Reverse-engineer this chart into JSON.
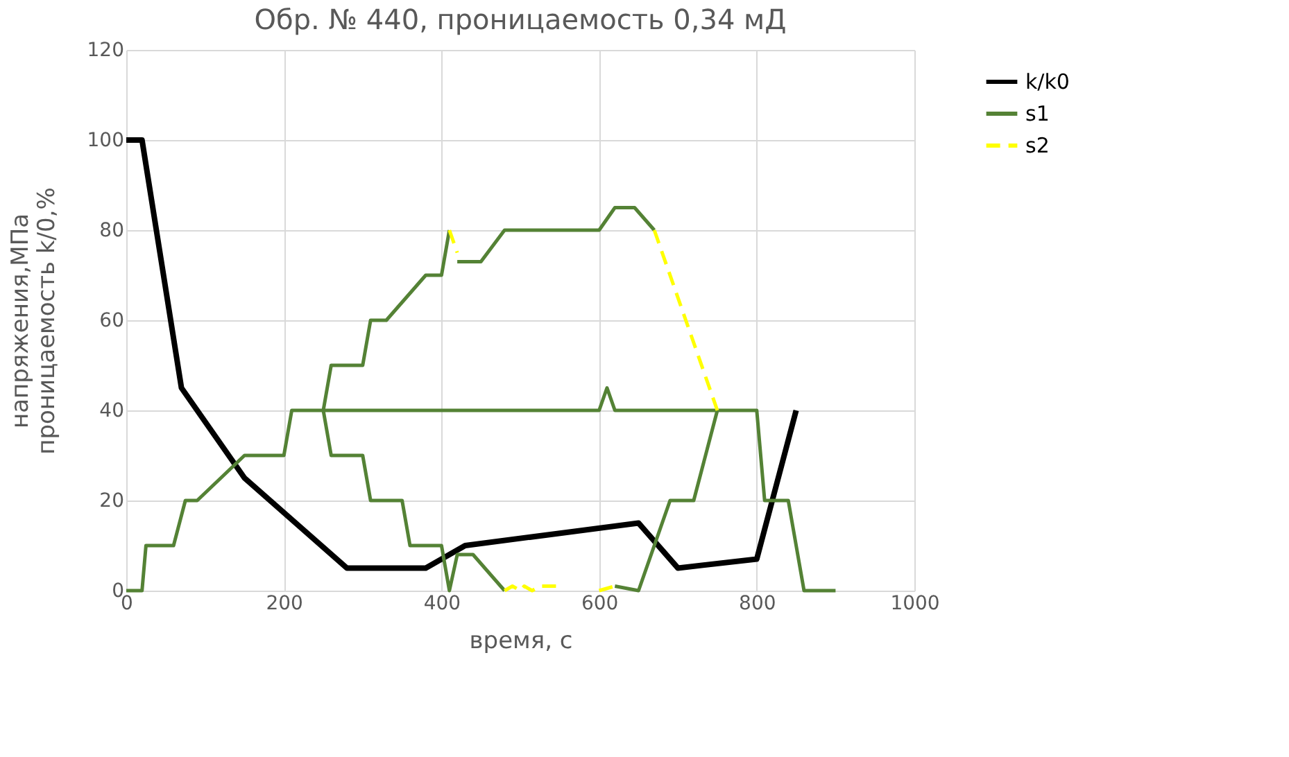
{
  "chart_data": {
    "type": "line",
    "title": "Обр. № 440, проницаемость 0,34 мД",
    "xlabel": "время, с",
    "ylabel": "напряжения,МПа\nпроницаемость k/0,%",
    "xlim": [
      0,
      1000
    ],
    "xticks": [
      0,
      200,
      400,
      600,
      800,
      1000
    ],
    "ylim": [
      0,
      120
    ],
    "yticks": [
      0,
      20,
      40,
      60,
      80,
      100,
      120
    ],
    "grid": true,
    "legend": "right",
    "marker": "none",
    "series": [
      {
        "name": "k/k0",
        "color": "#000000",
        "line_style": "solid",
        "x": [
          0,
          20,
          70,
          150,
          280,
          380,
          430,
          650,
          700,
          800,
          850
        ],
        "values": [
          100,
          100,
          45,
          25,
          5,
          5,
          10,
          15,
          5,
          7,
          40
        ]
      },
      {
        "name": "s1",
        "color": "#548235",
        "line_style": "solid",
        "x": [
          0,
          20,
          25,
          60,
          75,
          90,
          150,
          200,
          210,
          250,
          260,
          300,
          310,
          330,
          380,
          400,
          410,
          null,
          420,
          450,
          480,
          600,
          620,
          645,
          670,
          null,
          250,
          260,
          300,
          310,
          350,
          360,
          400,
          410,
          420,
          440,
          480,
          null,
          620,
          650,
          690,
          720,
          750,
          800,
          810,
          840,
          860,
          900,
          null,
          250,
          600,
          610,
          620,
          750
        ],
        "values": [
          0,
          0,
          10,
          10,
          20,
          20,
          30,
          30,
          40,
          40,
          50,
          50,
          60,
          60,
          70,
          70,
          80,
          null,
          73,
          73,
          80,
          80,
          85,
          85,
          80,
          null,
          40,
          30,
          30,
          20,
          20,
          10,
          10,
          0,
          8,
          8,
          0,
          null,
          1,
          0,
          20,
          20,
          40,
          40,
          20,
          20,
          0,
          0,
          null,
          40,
          40,
          45,
          40,
          40
        ]
      },
      {
        "name": "s2",
        "color": "#ffff00",
        "line_style": "dashed",
        "x": [
          410,
          420,
          null,
          480,
          490,
          500,
          505,
          515,
          525,
          550,
          null,
          600,
          620,
          null,
          670,
          750
        ],
        "values": [
          80,
          75,
          null,
          0,
          1,
          0,
          1,
          0,
          1,
          1,
          null,
          0,
          1,
          null,
          80,
          40
        ]
      }
    ]
  }
}
